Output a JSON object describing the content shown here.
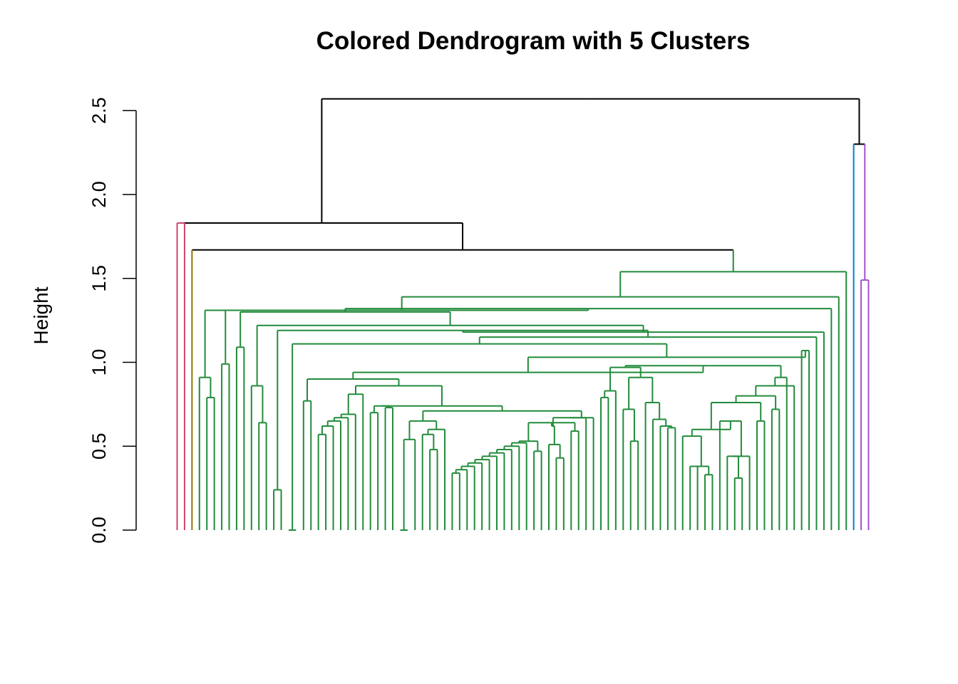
{
  "chart_data": {
    "type": "dendrogram",
    "title": "Colored Dendrogram with 5 Clusters",
    "xlabel": "",
    "ylabel": "Height",
    "ylim": [
      0,
      2.5
    ],
    "yticks": [
      "0.0",
      "0.5",
      "1.0",
      "1.5",
      "2.0",
      "2.5"
    ],
    "n_clusters": 5,
    "cluster_colors": [
      "#CC476B",
      "#917600",
      "#228B3B",
      "#0082CE",
      "#A352D1"
    ],
    "root_color": "#000000",
    "n_leaves": 97,
    "merge_heights": {
      "root": 2.57,
      "left_top": 1.83,
      "right_top": 2.3,
      "cluster5_internal": 1.49,
      "left_sub": 1.67,
      "cluster3_top": 1.54
    }
  }
}
